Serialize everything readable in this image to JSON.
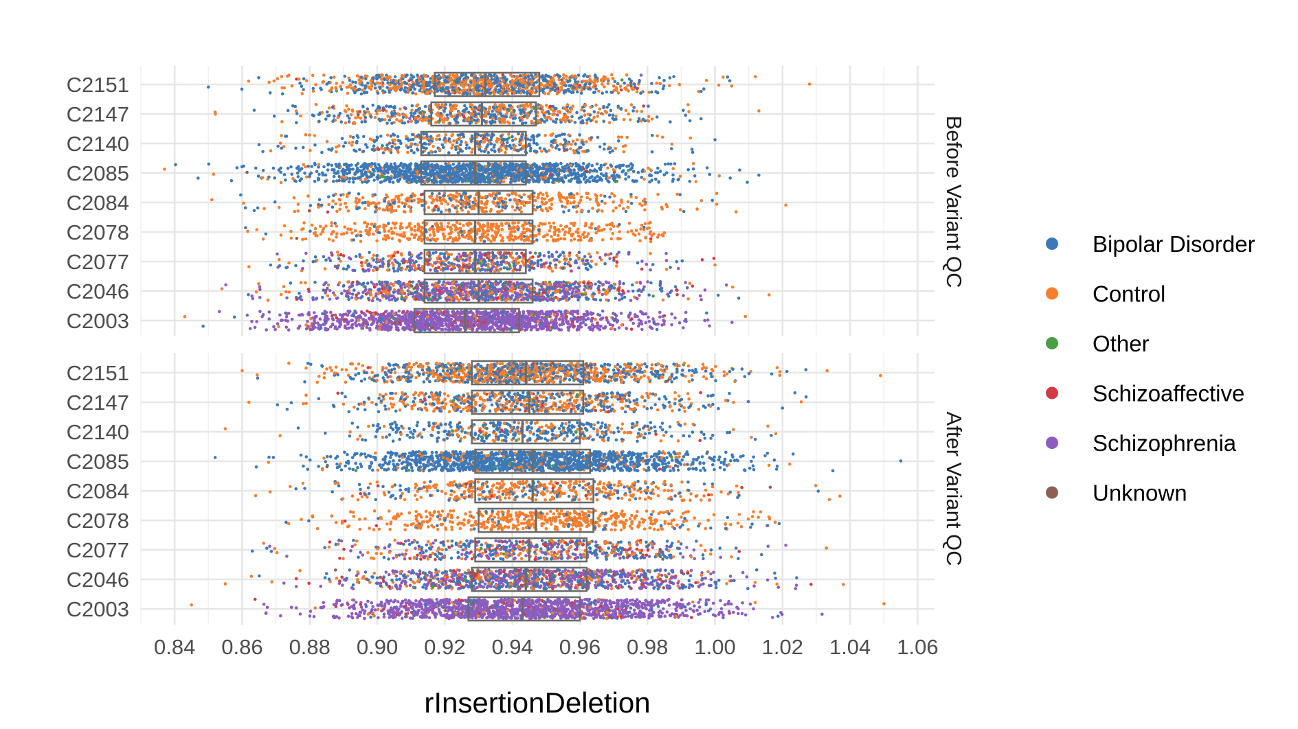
{
  "chart_data": {
    "type": "scatter",
    "subtype": "jittered strip plot with boxplots, faceted",
    "xlabel": "rInsertionDeletion",
    "ylabel": "",
    "xlim": [
      0.83,
      1.065
    ],
    "x_ticks": [
      "0.84",
      "0.86",
      "0.88",
      "0.90",
      "0.92",
      "0.94",
      "0.96",
      "0.98",
      "1.00",
      "1.02",
      "1.04",
      "1.06"
    ],
    "categories": [
      "C2151",
      "C2147",
      "C2140",
      "C2085",
      "C2084",
      "C2078",
      "C2077",
      "C2046",
      "C2003"
    ],
    "grid": true,
    "legend_position": "right",
    "legend": [
      {
        "name": "Bipolar Disorder",
        "color": "#3d79b6"
      },
      {
        "name": "Control",
        "color": "#f57f2f"
      },
      {
        "name": "Other",
        "color": "#4a9e45"
      },
      {
        "name": "Schizoaffective",
        "color": "#d03b45"
      },
      {
        "name": "Schizophrenia",
        "color": "#8d5cbe"
      },
      {
        "name": "Unknown",
        "color": "#8c6057"
      }
    ],
    "panels": [
      {
        "label": "Before Variant QC",
        "boxes": [
          {
            "category": "C2151",
            "q1": 0.917,
            "median": 0.932,
            "q3": 0.948,
            "xmin": 0.85,
            "xmax": 1.028,
            "composition": [
              0.46,
              0.51,
              0.005,
              0.015,
              0.005,
              0.005
            ],
            "n": 1100
          },
          {
            "category": "C2147",
            "q1": 0.916,
            "median": 0.931,
            "q3": 0.947,
            "xmin": 0.852,
            "xmax": 1.013,
            "composition": [
              0.45,
              0.51,
              0.01,
              0.02,
              0.005,
              0.005
            ],
            "n": 650
          },
          {
            "category": "C2140",
            "q1": 0.913,
            "median": 0.929,
            "q3": 0.944,
            "xmin": 0.865,
            "xmax": 1.0,
            "composition": [
              0.62,
              0.36,
              0.005,
              0.01,
              0.0,
              0.005
            ],
            "n": 450
          },
          {
            "category": "C2085",
            "q1": 0.913,
            "median": 0.929,
            "q3": 0.944,
            "xmin": 0.837,
            "xmax": 1.013,
            "composition": [
              0.88,
              0.1,
              0.01,
              0.005,
              0.0,
              0.005
            ],
            "n": 1500
          },
          {
            "category": "C2084",
            "q1": 0.914,
            "median": 0.93,
            "q3": 0.946,
            "xmin": 0.851,
            "xmax": 1.021,
            "composition": [
              0.27,
              0.71,
              0.005,
              0.01,
              0.0,
              0.005
            ],
            "n": 500
          },
          {
            "category": "C2078",
            "q1": 0.914,
            "median": 0.929,
            "q3": 0.946,
            "xmin": 0.861,
            "xmax": 0.985,
            "composition": [
              0.06,
              0.93,
              0.0,
              0.005,
              0.0,
              0.005
            ],
            "n": 550
          },
          {
            "category": "C2077",
            "q1": 0.914,
            "median": 0.929,
            "q3": 0.944,
            "xmin": 0.862,
            "xmax": 1.0,
            "composition": [
              0.38,
              0.3,
              0.01,
              0.1,
              0.2,
              0.01
            ],
            "n": 600
          },
          {
            "category": "C2046",
            "q1": 0.914,
            "median": 0.93,
            "q3": 0.946,
            "xmin": 0.854,
            "xmax": 1.016,
            "composition": [
              0.3,
              0.2,
              0.01,
              0.09,
              0.39,
              0.01
            ],
            "n": 1100
          },
          {
            "category": "C2003",
            "q1": 0.911,
            "median": 0.926,
            "q3": 0.942,
            "xmin": 0.843,
            "xmax": 1.009,
            "composition": [
              0.05,
              0.04,
              0.005,
              0.04,
              0.86,
              0.005
            ],
            "n": 1500
          }
        ]
      },
      {
        "label": "After Variant QC",
        "boxes": [
          {
            "category": "C2151",
            "q1": 0.928,
            "median": 0.944,
            "q3": 0.961,
            "xmin": 0.86,
            "xmax": 1.049,
            "composition": [
              0.46,
              0.51,
              0.005,
              0.015,
              0.005,
              0.005
            ],
            "n": 1100
          },
          {
            "category": "C2147",
            "q1": 0.928,
            "median": 0.945,
            "q3": 0.961,
            "xmin": 0.862,
            "xmax": 1.027,
            "composition": [
              0.45,
              0.51,
              0.01,
              0.02,
              0.005,
              0.005
            ],
            "n": 650
          },
          {
            "category": "C2140",
            "q1": 0.928,
            "median": 0.943,
            "q3": 0.96,
            "xmin": 0.855,
            "xmax": 1.018,
            "composition": [
              0.62,
              0.36,
              0.005,
              0.01,
              0.0,
              0.005
            ],
            "n": 450
          },
          {
            "category": "C2085",
            "q1": 0.929,
            "median": 0.946,
            "q3": 0.963,
            "xmin": 0.852,
            "xmax": 1.055,
            "composition": [
              0.88,
              0.1,
              0.01,
              0.005,
              0.0,
              0.005
            ],
            "n": 1500
          },
          {
            "category": "C2084",
            "q1": 0.929,
            "median": 0.946,
            "q3": 0.964,
            "xmin": 0.864,
            "xmax": 1.037,
            "composition": [
              0.27,
              0.71,
              0.005,
              0.01,
              0.0,
              0.005
            ],
            "n": 500
          },
          {
            "category": "C2078",
            "q1": 0.93,
            "median": 0.947,
            "q3": 0.964,
            "xmin": 0.873,
            "xmax": 1.019,
            "composition": [
              0.06,
              0.93,
              0.0,
              0.005,
              0.0,
              0.005
            ],
            "n": 550
          },
          {
            "category": "C2077",
            "q1": 0.929,
            "median": 0.945,
            "q3": 0.962,
            "xmin": 0.863,
            "xmax": 1.033,
            "composition": [
              0.38,
              0.3,
              0.01,
              0.1,
              0.2,
              0.01
            ],
            "n": 600
          },
          {
            "category": "C2046",
            "q1": 0.928,
            "median": 0.944,
            "q3": 0.962,
            "xmin": 0.855,
            "xmax": 1.038,
            "composition": [
              0.3,
              0.2,
              0.01,
              0.09,
              0.39,
              0.01
            ],
            "n": 1100
          },
          {
            "category": "C2003",
            "q1": 0.927,
            "median": 0.943,
            "q3": 0.96,
            "xmin": 0.845,
            "xmax": 1.05,
            "composition": [
              0.05,
              0.04,
              0.005,
              0.04,
              0.86,
              0.005
            ],
            "n": 1500
          }
        ]
      }
    ]
  }
}
